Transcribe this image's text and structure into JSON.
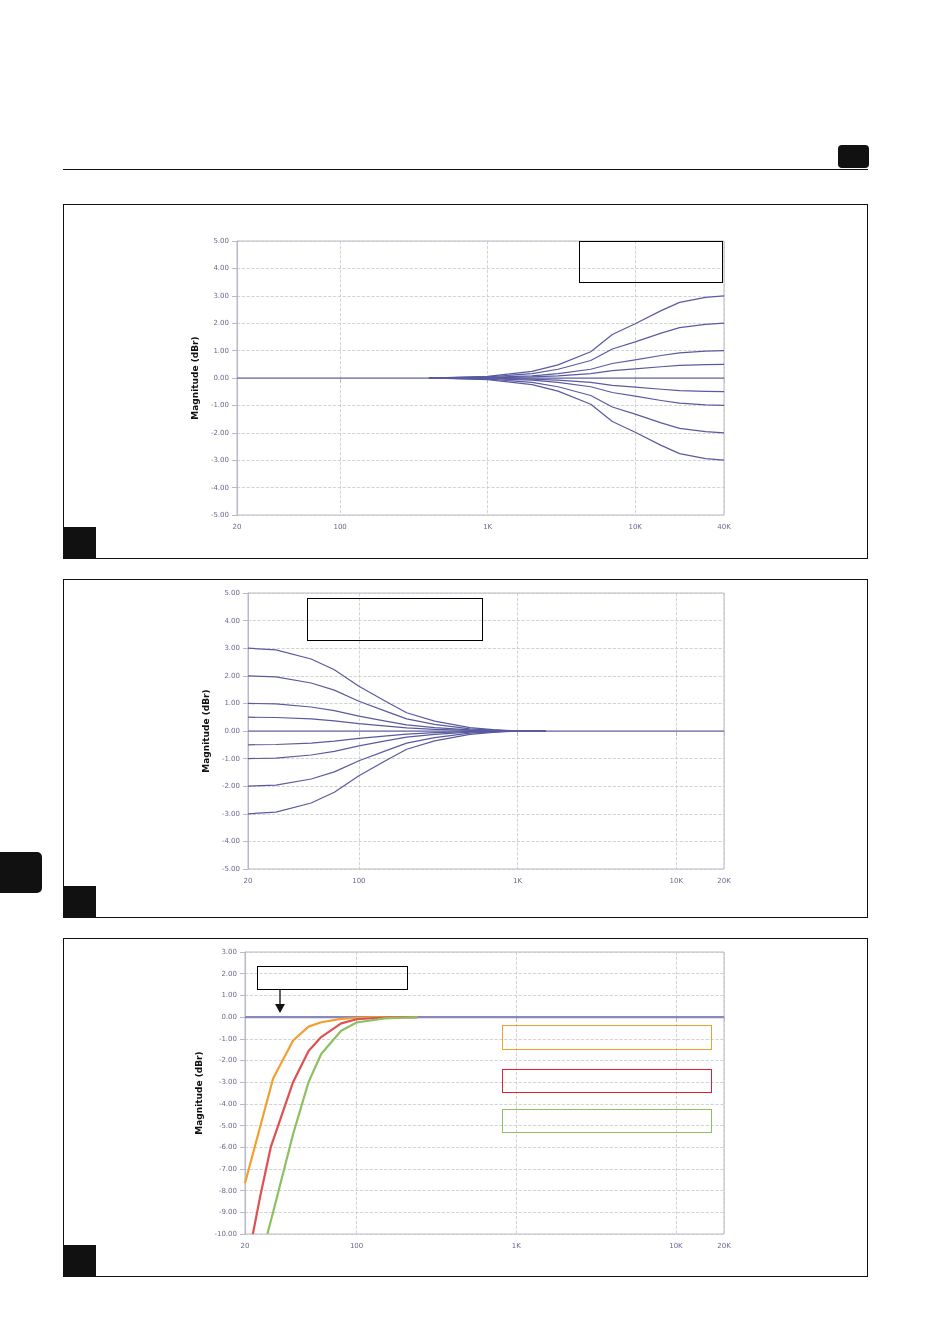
{
  "chart_data": [
    {
      "type": "line",
      "ylabel": "Magnitude (dBr)",
      "log": "x",
      "grid": true,
      "marker": "none",
      "line_style": "solid",
      "xlim": [
        20,
        40000
      ],
      "xticks": [
        {
          "value": 20,
          "label": "20"
        },
        {
          "value": 100,
          "label": "100"
        },
        {
          "value": 1000,
          "label": "1K"
        },
        {
          "value": 10000,
          "label": "10K"
        },
        {
          "value": 40000,
          "label": "40K"
        }
      ],
      "ylim": [
        -5,
        5
      ],
      "yticks": [
        {
          "value": -5,
          "label": "-5.00"
        },
        {
          "value": -4,
          "label": "-4.00"
        },
        {
          "value": -3,
          "label": "-3.00"
        },
        {
          "value": -2,
          "label": "-2.00"
        },
        {
          "value": -1,
          "label": "-1.00"
        },
        {
          "value": 0,
          "label": "0.00"
        },
        {
          "value": 1,
          "label": "1.00"
        },
        {
          "value": 2,
          "label": "2.00"
        },
        {
          "value": 3,
          "label": "3.00"
        },
        {
          "value": 4,
          "label": "4.00"
        },
        {
          "value": 5,
          "label": "5.00"
        }
      ],
      "series": [
        {
          "color": "#5a5aa0",
          "x": [
            400,
            1000,
            2000,
            3000,
            5000,
            7000,
            10000,
            15000,
            20000,
            30000,
            40000
          ],
          "values": [
            0,
            0.06,
            0.24,
            0.48,
            0.96,
            1.59,
            1.98,
            2.46,
            2.76,
            2.94,
            3.0
          ]
        },
        {
          "color": "#5a5aa0",
          "x": [
            400,
            1000,
            2000,
            3000,
            5000,
            7000,
            10000,
            15000,
            20000,
            30000,
            40000
          ],
          "values": [
            0,
            0.04,
            0.16,
            0.32,
            0.64,
            1.06,
            1.32,
            1.64,
            1.84,
            1.96,
            2.0
          ]
        },
        {
          "color": "#5a5aa0",
          "x": [
            400,
            1000,
            2000,
            3000,
            5000,
            7000,
            10000,
            15000,
            20000,
            30000,
            40000
          ],
          "values": [
            0,
            0.02,
            0.08,
            0.16,
            0.32,
            0.53,
            0.66,
            0.82,
            0.92,
            0.98,
            1.0
          ]
        },
        {
          "color": "#5a5aa0",
          "x": [
            400,
            1000,
            2000,
            3000,
            5000,
            7000,
            10000,
            15000,
            20000,
            30000,
            40000
          ],
          "values": [
            0,
            0.01,
            0.04,
            0.08,
            0.16,
            0.27,
            0.33,
            0.41,
            0.46,
            0.49,
            0.5
          ]
        },
        {
          "color": "#5a5aa0",
          "x": [
            20,
            40000
          ],
          "values": [
            0,
            0
          ]
        },
        {
          "color": "#5a5aa0",
          "x": [
            400,
            1000,
            2000,
            3000,
            5000,
            7000,
            10000,
            15000,
            20000,
            30000,
            40000
          ],
          "values": [
            0,
            -0.01,
            -0.04,
            -0.08,
            -0.16,
            -0.27,
            -0.33,
            -0.41,
            -0.46,
            -0.49,
            -0.5
          ]
        },
        {
          "color": "#5a5aa0",
          "x": [
            400,
            1000,
            2000,
            3000,
            5000,
            7000,
            10000,
            15000,
            20000,
            30000,
            40000
          ],
          "values": [
            0,
            -0.02,
            -0.08,
            -0.16,
            -0.32,
            -0.53,
            -0.66,
            -0.82,
            -0.92,
            -0.98,
            -1.0
          ]
        },
        {
          "color": "#5a5aa0",
          "x": [
            400,
            1000,
            2000,
            3000,
            5000,
            7000,
            10000,
            15000,
            20000,
            30000,
            40000
          ],
          "values": [
            0,
            -0.04,
            -0.16,
            -0.32,
            -0.64,
            -1.06,
            -1.32,
            -1.64,
            -1.84,
            -1.96,
            -2.0
          ]
        },
        {
          "color": "#5a5aa0",
          "x": [
            400,
            1000,
            2000,
            3000,
            5000,
            7000,
            10000,
            15000,
            20000,
            30000,
            40000
          ],
          "values": [
            0,
            -0.06,
            -0.24,
            -0.48,
            -0.96,
            -1.59,
            -1.98,
            -2.46,
            -2.76,
            -2.94,
            -3.0
          ]
        }
      ]
    },
    {
      "type": "line",
      "ylabel": "Magnitude (dBr)",
      "log": "x",
      "grid": true,
      "marker": "none",
      "line_style": "solid",
      "xlim": [
        20,
        20000
      ],
      "xticks": [
        {
          "value": 20,
          "label": "20"
        },
        {
          "value": 100,
          "label": "100"
        },
        {
          "value": 1000,
          "label": "1K"
        },
        {
          "value": 10000,
          "label": "10K"
        },
        {
          "value": 20000,
          "label": "20K"
        }
      ],
      "ylim": [
        -5,
        5
      ],
      "yticks": [
        {
          "value": -5,
          "label": "-5.00"
        },
        {
          "value": -4,
          "label": "-4.00"
        },
        {
          "value": -3,
          "label": "-3.00"
        },
        {
          "value": -2,
          "label": "-2.00"
        },
        {
          "value": -1,
          "label": "-1.00"
        },
        {
          "value": 0,
          "label": "0.00"
        },
        {
          "value": 1,
          "label": "1.00"
        },
        {
          "value": 2,
          "label": "2.00"
        },
        {
          "value": 3,
          "label": "3.00"
        },
        {
          "value": 4,
          "label": "4.00"
        },
        {
          "value": 5,
          "label": "5.00"
        }
      ],
      "series": [
        {
          "color": "#5a5aa0",
          "x": [
            20,
            30,
            50,
            70,
            100,
            150,
            200,
            300,
            500,
            700,
            1000,
            1500
          ],
          "values": [
            3,
            2.94,
            2.61,
            2.22,
            1.62,
            1.05,
            0.66,
            0.36,
            0.12,
            0.05,
            0,
            0
          ]
        },
        {
          "color": "#5a5aa0",
          "x": [
            20,
            30,
            50,
            70,
            100,
            150,
            200,
            300,
            500,
            700,
            1000,
            1500
          ],
          "values": [
            2,
            1.96,
            1.74,
            1.48,
            1.08,
            0.7,
            0.44,
            0.24,
            0.08,
            0.03,
            0,
            0
          ]
        },
        {
          "color": "#5a5aa0",
          "x": [
            20,
            30,
            50,
            70,
            100,
            150,
            200,
            300,
            500,
            700,
            1000,
            1500
          ],
          "values": [
            1,
            0.98,
            0.87,
            0.74,
            0.54,
            0.35,
            0.22,
            0.12,
            0.04,
            0.02,
            0,
            0
          ]
        },
        {
          "color": "#5a5aa0",
          "x": [
            20,
            30,
            50,
            70,
            100,
            150,
            200,
            300,
            500,
            700,
            1000,
            1500
          ],
          "values": [
            0.5,
            0.49,
            0.44,
            0.37,
            0.27,
            0.18,
            0.11,
            0.06,
            0.02,
            0.01,
            0,
            0
          ]
        },
        {
          "color": "#5a5aa0",
          "x": [
            20,
            20000
          ],
          "values": [
            0,
            0
          ]
        },
        {
          "color": "#5a5aa0",
          "x": [
            20,
            30,
            50,
            70,
            100,
            150,
            200,
            300,
            500,
            700,
            1000,
            1500
          ],
          "values": [
            -0.5,
            -0.49,
            -0.44,
            -0.37,
            -0.27,
            -0.18,
            -0.11,
            -0.06,
            -0.02,
            -0.01,
            0,
            0
          ]
        },
        {
          "color": "#5a5aa0",
          "x": [
            20,
            30,
            50,
            70,
            100,
            150,
            200,
            300,
            500,
            700,
            1000,
            1500
          ],
          "values": [
            -1,
            -0.98,
            -0.87,
            -0.74,
            -0.54,
            -0.35,
            -0.22,
            -0.12,
            -0.04,
            -0.02,
            0,
            0
          ]
        },
        {
          "color": "#5a5aa0",
          "x": [
            20,
            30,
            50,
            70,
            100,
            150,
            200,
            300,
            500,
            700,
            1000,
            1500
          ],
          "values": [
            -2,
            -1.96,
            -1.74,
            -1.48,
            -1.08,
            -0.7,
            -0.44,
            -0.24,
            -0.08,
            -0.03,
            0,
            0
          ]
        },
        {
          "color": "#5a5aa0",
          "x": [
            20,
            30,
            50,
            70,
            100,
            150,
            200,
            300,
            500,
            700,
            1000,
            1500
          ],
          "values": [
            -3,
            -2.94,
            -2.61,
            -2.22,
            -1.62,
            -1.05,
            -0.66,
            -0.36,
            -0.12,
            -0.05,
            0,
            0
          ]
        }
      ]
    },
    {
      "type": "line",
      "ylabel": "Magnitude (dBr)",
      "log": "x",
      "grid": true,
      "marker": "none",
      "line_style": "solid",
      "xlim": [
        20,
        20000
      ],
      "xticks": [
        {
          "value": 20,
          "label": "20"
        },
        {
          "value": 100,
          "label": "100"
        },
        {
          "value": 1000,
          "label": "1K"
        },
        {
          "value": 10000,
          "label": "10K"
        },
        {
          "value": 20000,
          "label": "20K"
        }
      ],
      "ylim": [
        -10,
        3
      ],
      "yticks": [
        {
          "value": -10,
          "label": "-10.00"
        },
        {
          "value": -9,
          "label": "-9.00"
        },
        {
          "value": -8,
          "label": "-8.00"
        },
        {
          "value": -7,
          "label": "-7.00"
        },
        {
          "value": -6,
          "label": "-6.00"
        },
        {
          "value": -5,
          "label": "-5.00"
        },
        {
          "value": -4,
          "label": "-4.00"
        },
        {
          "value": -3,
          "label": "-3.00"
        },
        {
          "value": -2,
          "label": "-2.00"
        },
        {
          "value": -1,
          "label": "-1.00"
        },
        {
          "value": 0,
          "label": "0.00"
        },
        {
          "value": 1,
          "label": "1.00"
        },
        {
          "value": 2,
          "label": "2.00"
        },
        {
          "value": 3,
          "label": "3.00"
        }
      ],
      "series": [
        {
          "color": "#8888bb",
          "x": [
            20,
            20000
          ],
          "values": [
            0,
            0
          ]
        },
        {
          "color": "#f0a030",
          "x": [
            20,
            25,
            30,
            40,
            50,
            60,
            80,
            100,
            150,
            240
          ],
          "values": [
            -7.66,
            -5.0,
            -2.83,
            -1.08,
            -0.44,
            -0.24,
            -0.08,
            -0.03,
            0,
            0
          ]
        },
        {
          "color": "#e05050",
          "x": [
            22.4,
            25,
            29,
            40,
            50,
            60,
            80,
            100,
            150,
            240
          ],
          "values": [
            -10,
            -8.2,
            -6.0,
            -3.0,
            -1.56,
            -0.92,
            -0.29,
            -0.1,
            -0.02,
            0
          ]
        },
        {
          "color": "#8cc060",
          "x": [
            27.6,
            30,
            40,
            50,
            60,
            80,
            100,
            150,
            200,
            240
          ],
          "values": [
            -10,
            -9.0,
            -5.4,
            -3.0,
            -1.7,
            -0.63,
            -0.25,
            -0.06,
            -0.02,
            0
          ]
        }
      ]
    }
  ]
}
